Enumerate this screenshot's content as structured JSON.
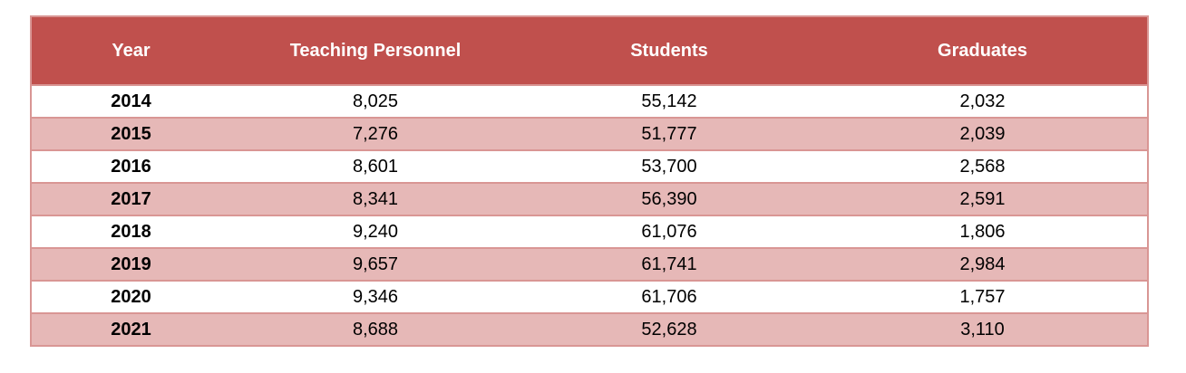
{
  "table": {
    "columns": [
      "Year",
      "Teaching Personnel",
      "Students",
      "Graduates"
    ],
    "rows": [
      [
        "2014",
        "8,025",
        "55,142",
        "2,032"
      ],
      [
        "2015",
        "7,276",
        "51,777",
        "2,039"
      ],
      [
        "2016",
        "8,601",
        "53,700",
        "2,568"
      ],
      [
        "2017",
        "8,341",
        "56,390",
        "2,591"
      ],
      [
        "2018",
        "9,240",
        "61,076",
        "1,806"
      ],
      [
        "2019",
        "9,657",
        "61,741",
        "2,984"
      ],
      [
        "2020",
        "9,346",
        "61,706",
        "1,757"
      ],
      [
        "2021",
        "8,688",
        "52,628",
        "3,110"
      ]
    ]
  }
}
